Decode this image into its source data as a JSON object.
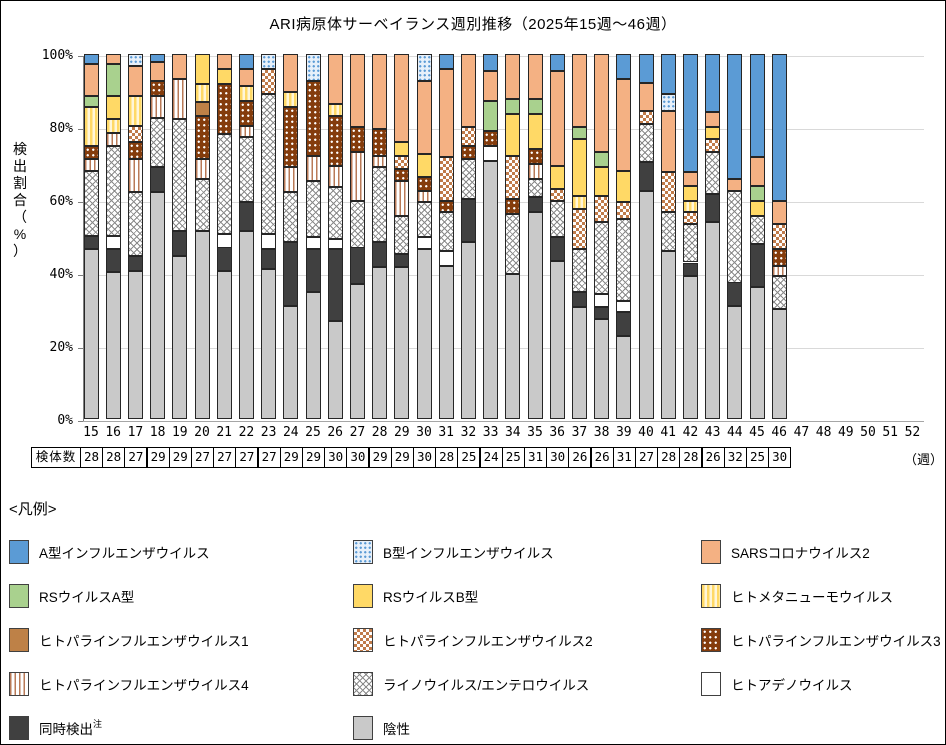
{
  "title": "ARI病原体サーベイランス週別推移（2025年15週～46週）",
  "y_axis": {
    "label": "検出割合（%）",
    "ticks": [
      {
        "v": 0,
        "label": "0%"
      },
      {
        "v": 20,
        "label": "20%"
      },
      {
        "v": 40,
        "label": "40%"
      },
      {
        "v": 60,
        "label": "60%"
      },
      {
        "v": 80,
        "label": "80%"
      },
      {
        "v": 100,
        "label": "100%"
      }
    ]
  },
  "x_axis": {
    "weeks": [
      15,
      16,
      17,
      18,
      19,
      20,
      21,
      22,
      23,
      24,
      25,
      26,
      27,
      28,
      29,
      30,
      31,
      32,
      33,
      34,
      35,
      36,
      37,
      38,
      39,
      40,
      41,
      42,
      43,
      44,
      45,
      46,
      47,
      48,
      49,
      50,
      51,
      52
    ],
    "unit": "（週）"
  },
  "specimen_row": {
    "label": "検体数",
    "values": [
      28,
      28,
      27,
      29,
      29,
      27,
      27,
      27,
      27,
      29,
      29,
      30,
      30,
      29,
      29,
      30,
      28,
      25,
      24,
      25,
      31,
      30,
      26,
      26,
      31,
      27,
      28,
      28,
      26,
      32,
      25,
      30
    ]
  },
  "legend": {
    "title": "<凡例>",
    "items": [
      {
        "key": "fluA",
        "label": "A型インフルエンザウイルス"
      },
      {
        "key": "fluB",
        "label": "B型インフルエンザウイルス"
      },
      {
        "key": "sars2",
        "label": "SARSコロナウイルス2"
      },
      {
        "key": "rsva",
        "label": "RSウイルスA型"
      },
      {
        "key": "rsvb",
        "label": "RSウイルスB型"
      },
      {
        "key": "hmpv",
        "label": "ヒトメタニューモウイルス"
      },
      {
        "key": "piv1",
        "label": "ヒトパラインフルエンザウイルス1"
      },
      {
        "key": "piv2",
        "label": "ヒトパラインフルエンザウイルス2"
      },
      {
        "key": "piv3",
        "label": "ヒトパラインフルエンザウイルス3"
      },
      {
        "key": "piv4",
        "label": "ヒトパラインフルエンザウイルス4"
      },
      {
        "key": "rhino",
        "label": "ライノウイルス/エンテロウイルス"
      },
      {
        "key": "adeno",
        "label": "ヒトアデノウイルス"
      },
      {
        "key": "codetect",
        "label": "同時検出",
        "sup": "注"
      },
      {
        "key": "negative",
        "label": "陰性"
      }
    ]
  },
  "colors": {
    "fluA": "#5b9bd5",
    "fluB_dot_on_light": "#5b9bd5",
    "sars2": "#f4b183",
    "rsva": "#a9d18e",
    "rsvb": "#ffd966",
    "piv1": "#be8147",
    "piv3": "#843c0c",
    "codetect": "#404040",
    "negative": "#c9c9c9",
    "gridline": "#d9d9d9"
  },
  "chart_data": {
    "type": "bar",
    "subtype": "stacked-percent",
    "title": "ARI病原体サーベイランス週別推移（2025年15週～46週）",
    "xlabel": "週",
    "ylabel": "検出割合（%）",
    "ylim": [
      0,
      100
    ],
    "grid": true,
    "legend_position": "bottom",
    "categories": [
      15,
      16,
      17,
      18,
      19,
      20,
      21,
      22,
      23,
      24,
      25,
      26,
      27,
      28,
      29,
      30,
      31,
      32,
      33,
      34,
      35,
      36,
      37,
      38,
      39,
      40,
      41,
      42,
      43,
      44,
      45,
      46
    ],
    "specimen_counts": [
      28,
      28,
      27,
      29,
      29,
      27,
      27,
      27,
      27,
      29,
      29,
      30,
      30,
      29,
      29,
      30,
      28,
      25,
      24,
      25,
      31,
      30,
      26,
      26,
      31,
      27,
      28,
      28,
      26,
      32,
      25,
      30
    ],
    "stack_order_note": "series listed bottom-to-top; values are percent of weekly specimens",
    "series": [
      {
        "key": "negative",
        "name": "陰性",
        "values": [
          46.6,
          40.2,
          40.6,
          62.1,
          44.7,
          51.6,
          40.6,
          51.6,
          41.1,
          31.0,
          34.7,
          26.9,
          37.0,
          41.6,
          41.6,
          46.6,
          42.0,
          48.4,
          70.8,
          39.7,
          56.6,
          43.4,
          30.6,
          27.4,
          22.8,
          62.6,
          46.1,
          39.3,
          53.9,
          31.0,
          36.1,
          30.1
        ]
      },
      {
        "key": "codetect",
        "name": "同時検出",
        "values": [
          3.6,
          6.4,
          4.1,
          6.9,
          6.9,
          0,
          6.4,
          7.8,
          5.5,
          17.4,
          11.9,
          19.7,
          10.0,
          6.8,
          3.6,
          0,
          0,
          11.9,
          0,
          0,
          4.1,
          6.4,
          4.1,
          3.2,
          6.4,
          7.7,
          0,
          3.6,
          7.7,
          6.4,
          11.8,
          0
        ]
      },
      {
        "key": "adeno",
        "name": "ヒトアデノウイルス",
        "values": [
          0,
          3.6,
          0,
          0,
          0,
          0,
          3.7,
          0,
          4.1,
          0,
          3.2,
          2.7,
          0,
          0,
          0,
          3.2,
          4.1,
          0,
          4.1,
          0,
          0,
          0,
          0,
          3.6,
          3.2,
          0,
          0,
          0,
          0,
          0,
          0,
          0
        ]
      },
      {
        "key": "rhino",
        "name": "ライノウイルス/エンテロウイルス",
        "values": [
          17.8,
          24.7,
          17.4,
          13.6,
          30.6,
          14.2,
          27.4,
          17.8,
          38.3,
          13.7,
          15.5,
          14.2,
          12.8,
          20.6,
          10.5,
          9.6,
          10.5,
          10.9,
          0,
          16.5,
          5.1,
          10.0,
          11.9,
          19.7,
          22.4,
          10.5,
          10.5,
          10.5,
          11.5,
          25.2,
          7.8,
          9.2
        ]
      },
      {
        "key": "piv4",
        "name": "ヒトパラインフルエンザウイルス4",
        "values": [
          3.2,
          3.6,
          9.1,
          6.0,
          11.0,
          5.4,
          0,
          3.2,
          0,
          6.9,
          6.8,
          5.9,
          13.3,
          3.1,
          9.6,
          3.2,
          0,
          0,
          0,
          0,
          4.1,
          0,
          0,
          0,
          0,
          0,
          0,
          0,
          0,
          0,
          0,
          2.7
        ]
      },
      {
        "key": "piv3",
        "name": "ヒトパラインフルエンザウイルス3",
        "values": [
          3.7,
          0,
          4.6,
          4.1,
          0,
          11.9,
          13.7,
          6.8,
          0,
          16.4,
          20.6,
          13.7,
          6.8,
          7.4,
          3.2,
          3.6,
          3.2,
          3.7,
          4.1,
          4.1,
          4.1,
          0,
          0,
          0,
          0,
          0,
          0,
          0,
          0,
          0,
          0,
          4.6
        ]
      },
      {
        "key": "piv2",
        "name": "ヒトパラインフルエンザウイルス2",
        "values": [
          0,
          0,
          4.6,
          0,
          0,
          0,
          0,
          0,
          6.9,
          0,
          0,
          0,
          0,
          0,
          3.6,
          0,
          11.9,
          5.0,
          0,
          11.8,
          0,
          3.2,
          10.9,
          7.3,
          4.6,
          3.7,
          11.0,
          3.2,
          3.6,
          0,
          0,
          6.8
        ]
      },
      {
        "key": "piv1",
        "name": "ヒトパラインフルエンザウイルス1",
        "values": [
          0,
          0,
          0,
          0,
          0,
          3.7,
          0,
          0,
          0,
          0,
          0,
          0,
          0,
          0,
          0,
          0,
          0,
          0,
          0,
          0,
          0,
          0,
          0,
          0,
          0,
          0,
          0,
          0,
          0,
          0,
          0,
          0
        ]
      },
      {
        "key": "hmpv",
        "name": "ヒトメタニューモウイルス",
        "values": [
          10.5,
          3.7,
          8.2,
          0,
          0,
          5.0,
          0,
          4.1,
          0,
          4.1,
          0,
          3.2,
          0,
          0,
          0,
          0,
          0,
          0,
          0,
          0,
          0,
          0,
          3.7,
          0,
          0,
          0,
          0,
          3.2,
          0,
          0,
          0,
          0
        ]
      },
      {
        "key": "rsvb",
        "name": "RSウイルスB型",
        "values": [
          0,
          6.4,
          0,
          0,
          0,
          8.2,
          4.1,
          0,
          0,
          0,
          0,
          0,
          0,
          0,
          3.7,
          6.4,
          0,
          0,
          0,
          11.5,
          9.6,
          6.4,
          15.5,
          7.8,
          8.6,
          0,
          0,
          4.1,
          3.2,
          0,
          4.1,
          0
        ]
      },
      {
        "key": "rsva",
        "name": "RSウイルスA型",
        "values": [
          3.2,
          8.7,
          0,
          0,
          0,
          0,
          0,
          0,
          0,
          0,
          0,
          0,
          0,
          0,
          0,
          0,
          0,
          0,
          8.2,
          4.1,
          4.1,
          0,
          3.2,
          4.1,
          0,
          0,
          0,
          0,
          0,
          0,
          4.1,
          0
        ]
      },
      {
        "key": "sars2",
        "name": "SARSコロナウイルス2",
        "values": [
          8.7,
          2.7,
          8.2,
          5.0,
          6.8,
          0,
          4.1,
          4.6,
          0,
          10.5,
          0,
          13.7,
          20.1,
          20.5,
          24.2,
          20.1,
          24.2,
          20.1,
          8.2,
          12.3,
          12.3,
          26.0,
          20.1,
          26.9,
          25.2,
          7.7,
          16.9,
          3.7,
          4.1,
          3.2,
          7.8,
          6.4
        ]
      },
      {
        "key": "fluB",
        "name": "B型インフルエンザウイルス",
        "values": [
          0,
          0,
          3.2,
          0,
          0,
          0,
          0,
          0,
          4.1,
          0,
          7.3,
          0,
          0,
          0,
          0,
          7.3,
          0,
          0,
          0,
          0,
          0,
          0,
          0,
          0,
          0,
          0,
          4.5,
          0,
          0,
          0,
          0,
          0
        ]
      },
      {
        "key": "fluA",
        "name": "A型インフルエンザウイルス",
        "values": [
          2.7,
          0,
          0,
          2.3,
          0,
          0,
          0,
          4.1,
          0,
          0,
          0,
          0,
          0,
          0,
          0,
          0,
          4.1,
          0,
          4.6,
          0,
          0,
          4.6,
          0,
          0,
          6.8,
          7.8,
          11.0,
          32.4,
          16.0,
          34.2,
          28.3,
          40.2
        ]
      }
    ]
  }
}
